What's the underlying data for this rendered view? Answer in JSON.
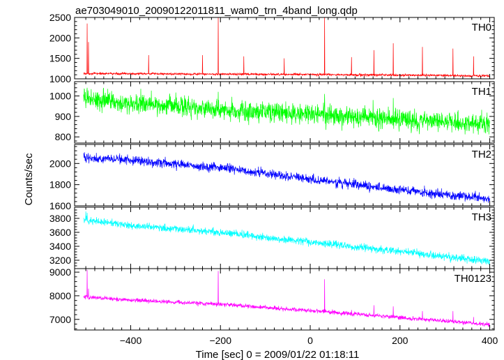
{
  "chart_data": {
    "type": "line",
    "title": "ae703049010_20090122011811_wam0_trn_4band_long.qdp",
    "xlabel": "Time [sec] 0 = 2009/01/22 01:18:11",
    "ylabel": "Counts/sec",
    "xlim": [
      -525,
      410
    ],
    "x_ticks": [
      -400,
      -200,
      0,
      200,
      400
    ],
    "x_range": [
      -505,
      400
    ],
    "legend": "none",
    "grid": false,
    "panels": [
      {
        "name": "TH0",
        "color": "#ff0000",
        "ylim": [
          1000,
          2500
        ],
        "y_ticks": [
          1000,
          1500,
          2000,
          2500
        ],
        "baseline": [
          [
            -505,
            1130
          ],
          [
            -300,
            1120
          ],
          [
            0,
            1105
          ],
          [
            200,
            1090
          ],
          [
            400,
            1070
          ]
        ],
        "noise": 25,
        "spikes": [
          [
            -497,
            2350
          ],
          [
            -494,
            1900
          ],
          [
            -360,
            1580
          ],
          [
            -240,
            1580
          ],
          [
            -205,
            2500
          ],
          [
            -148,
            1550
          ],
          [
            -58,
            1500
          ],
          [
            32,
            2500
          ],
          [
            92,
            1530
          ],
          [
            142,
            1700
          ],
          [
            185,
            1870
          ],
          [
            250,
            1780
          ],
          [
            318,
            1740
          ],
          [
            364,
            1550
          ]
        ]
      },
      {
        "name": "TH1",
        "color": "#00ff00",
        "ylim": [
          770,
          1070
        ],
        "y_ticks": [
          800,
          900,
          1000
        ],
        "baseline": [
          [
            -505,
            990
          ],
          [
            -400,
            965
          ],
          [
            -200,
            935
          ],
          [
            0,
            910
          ],
          [
            200,
            885
          ],
          [
            400,
            860
          ]
        ],
        "noise": 45,
        "spikes": [
          [
            -497,
            1040
          ],
          [
            -205,
            1020
          ],
          [
            32,
            1010
          ],
          [
            140,
            980
          ],
          [
            185,
            990
          ]
        ]
      },
      {
        "name": "TH2",
        "color": "#0000ff",
        "ylim": [
          1600,
          2180
        ],
        "y_ticks": [
          1600,
          1800,
          2000
        ],
        "baseline": [
          [
            -505,
            2060
          ],
          [
            -400,
            2030
          ],
          [
            -200,
            1960
          ],
          [
            0,
            1850
          ],
          [
            200,
            1750
          ],
          [
            400,
            1660
          ]
        ],
        "noise": 40,
        "spikes": []
      },
      {
        "name": "TH3",
        "color": "#00ffff",
        "ylim": [
          3080,
          3960
        ],
        "y_ticks": [
          3200,
          3400,
          3600,
          3800
        ],
        "baseline": [
          [
            -505,
            3780
          ],
          [
            -400,
            3700
          ],
          [
            -200,
            3600
          ],
          [
            0,
            3460
          ],
          [
            200,
            3330
          ],
          [
            400,
            3180
          ]
        ],
        "noise": 50,
        "spikes": [
          [
            -500,
            3900
          ],
          [
            -497,
            3880
          ]
        ]
      },
      {
        "name": "TH0123",
        "color": "#ff00ff",
        "ylim": [
          6550,
          9150
        ],
        "y_ticks": [
          7000,
          8000,
          9000
        ],
        "baseline": [
          [
            -505,
            7950
          ],
          [
            -400,
            7820
          ],
          [
            -200,
            7640
          ],
          [
            0,
            7370
          ],
          [
            200,
            7080
          ],
          [
            400,
            6780
          ]
        ],
        "noise": 80,
        "spikes": [
          [
            -497,
            9100
          ],
          [
            -494,
            8300
          ],
          [
            -360,
            7800
          ],
          [
            -240,
            7700
          ],
          [
            -205,
            9050
          ],
          [
            -148,
            7600
          ],
          [
            32,
            8700
          ],
          [
            92,
            7400
          ],
          [
            142,
            7600
          ],
          [
            185,
            7550
          ],
          [
            250,
            7350
          ],
          [
            318,
            7350
          ],
          [
            364,
            7100
          ]
        ]
      }
    ]
  }
}
